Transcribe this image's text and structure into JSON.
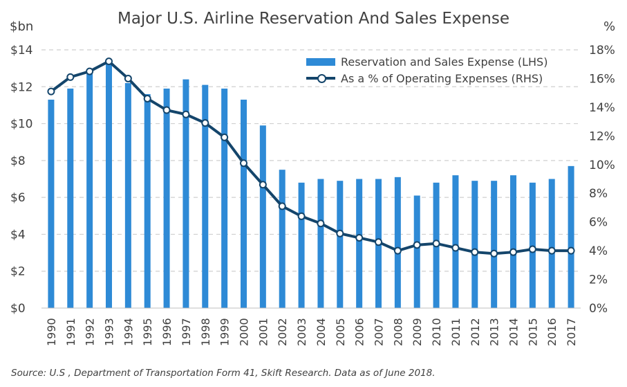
{
  "chart_data": {
    "type": "bar+line",
    "title": "Major U.S. Airline Reservation And Sales Expense",
    "y_left_unit": "$bn",
    "y_right_unit": "%",
    "categories": [
      "1990",
      "1991",
      "1992",
      "1993",
      "1994",
      "1995",
      "1996",
      "1997",
      "1998",
      "1999",
      "2000",
      "2001",
      "2002",
      "2003",
      "2004",
      "2005",
      "2006",
      "2007",
      "2008",
      "2009",
      "2010",
      "2011",
      "2012",
      "2013",
      "2014",
      "2015",
      "2016",
      "2017"
    ],
    "series": [
      {
        "name": "Reservation and Sales Expense (LHS)",
        "type": "bar",
        "axis": "left",
        "color": "#2e8ad6",
        "values": [
          11.3,
          11.9,
          12.7,
          13.4,
          12.2,
          11.6,
          11.9,
          12.4,
          12.1,
          11.9,
          11.3,
          9.9,
          7.5,
          6.8,
          7.0,
          6.9,
          7.0,
          7.0,
          7.1,
          6.1,
          6.8,
          7.2,
          6.9,
          6.9,
          7.2,
          6.8,
          7.0,
          7.7
        ]
      },
      {
        "name": "As a % of Operating Expenses (RHS)",
        "type": "line",
        "axis": "right",
        "color": "#14456b",
        "values": [
          15.1,
          16.1,
          16.5,
          17.2,
          16.0,
          14.6,
          13.8,
          13.5,
          12.9,
          11.9,
          10.1,
          8.6,
          7.1,
          6.4,
          5.9,
          5.2,
          4.9,
          4.6,
          4.0,
          4.4,
          4.5,
          4.2,
          3.9,
          3.8,
          3.9,
          4.1,
          4.0,
          4.0
        ]
      }
    ],
    "y_left": {
      "min": 0,
      "max": 14,
      "ticks": [
        0,
        2,
        4,
        6,
        8,
        10,
        12,
        14
      ],
      "tick_labels": [
        "$0",
        "$2",
        "$4",
        "$6",
        "$8",
        "$10",
        "$12",
        "$14"
      ]
    },
    "y_right": {
      "min": 0,
      "max": 18,
      "ticks": [
        0,
        2,
        4,
        6,
        8,
        10,
        12,
        14,
        16,
        18
      ],
      "tick_labels": [
        "0%",
        "2%",
        "4%",
        "6%",
        "8%",
        "10%",
        "12%",
        "14%",
        "16%",
        "18%"
      ]
    },
    "grid": "horizontal dashed",
    "legend_position": "top-right",
    "source": "Source: U.S , Department of Transportation Form 41, Skift Research. Data as of June 2018."
  }
}
